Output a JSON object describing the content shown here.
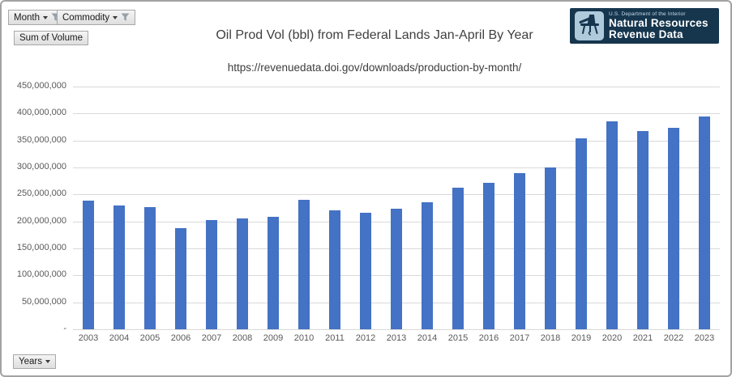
{
  "pivot_filters": {
    "month": {
      "label": "Month"
    },
    "commodity": {
      "label": "Commodity"
    },
    "values_field": {
      "label": "Sum of Volume"
    },
    "axis_field": {
      "label": "Years"
    }
  },
  "logo": {
    "agency_line": "U.S. Department of the Interior",
    "title_line1": "Natural Resources",
    "title_line2": "Revenue Data",
    "bg_color": "#16364e",
    "icon_bg_color": "#aecadb"
  },
  "chart_data": {
    "type": "bar",
    "title": "Oil Prod Vol (bbl) from Federal Lands Jan-April By Year",
    "subtitle": "https://revenuedata.doi.gov/downloads/production-by-month/",
    "xlabel": "",
    "ylabel": "",
    "legend": "none",
    "grid": true,
    "ylim": [
      0,
      450000000
    ],
    "categories": [
      "2003",
      "2004",
      "2005",
      "2006",
      "2007",
      "2008",
      "2009",
      "2010",
      "2011",
      "2012",
      "2013",
      "2014",
      "2015",
      "2016",
      "2017",
      "2018",
      "2019",
      "2020",
      "2021",
      "2022",
      "2023"
    ],
    "values": [
      238000000,
      230000000,
      227000000,
      188000000,
      203000000,
      205000000,
      208000000,
      240000000,
      221000000,
      216000000,
      223000000,
      235000000,
      262000000,
      271000000,
      289000000,
      300000000,
      354000000,
      386000000,
      367000000,
      373000000,
      394000000
    ],
    "y_ticks": [
      {
        "value": 450000000,
        "label": "450,000,000"
      },
      {
        "value": 400000000,
        "label": "400,000,000"
      },
      {
        "value": 350000000,
        "label": "350,000,000"
      },
      {
        "value": 300000000,
        "label": "300,000,000"
      },
      {
        "value": 250000000,
        "label": "250,000,000"
      },
      {
        "value": 200000000,
        "label": "200,000,000"
      },
      {
        "value": 150000000,
        "label": "150,000,000"
      },
      {
        "value": 100000000,
        "label": "100,000,000"
      },
      {
        "value": 50000000,
        "label": "50,000,000"
      },
      {
        "value": 0,
        "label": "-"
      }
    ],
    "bar_color": "#4472C4",
    "gridline_color": "#d9d9d9",
    "axis_text_color": "#595959"
  }
}
